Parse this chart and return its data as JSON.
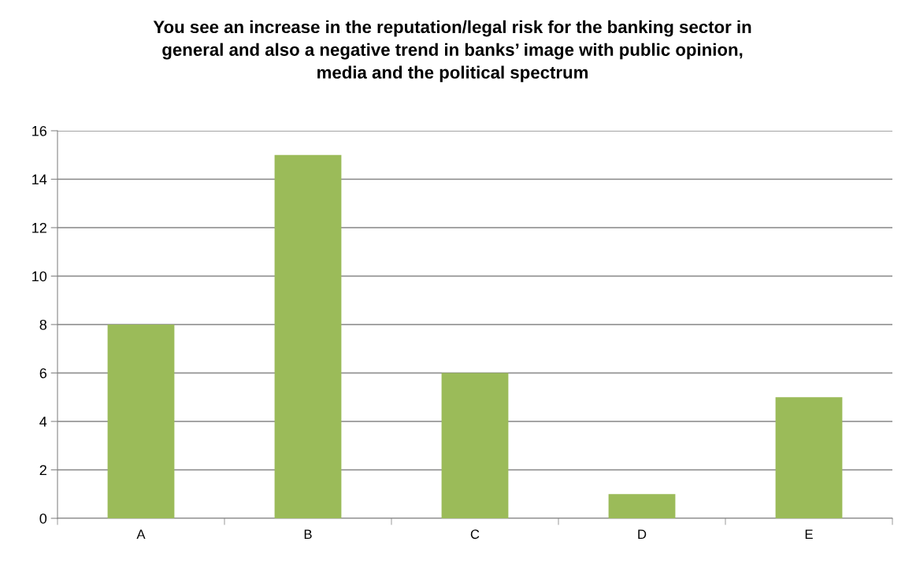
{
  "chart_data": {
    "type": "bar",
    "title": "You see an increase in the reputation/legal risk for the banking sector in\ngeneral and also a negative trend in banks’ image with public opinion,\nmedia and the political spectrum",
    "categories": [
      "A",
      "B",
      "C",
      "D",
      "E"
    ],
    "values": [
      8,
      15,
      6,
      1,
      5
    ],
    "color": "#9bbb59",
    "ylim": [
      0,
      16
    ],
    "yticks": [
      0,
      2,
      4,
      6,
      8,
      10,
      12,
      14,
      16
    ],
    "grid": "y"
  }
}
